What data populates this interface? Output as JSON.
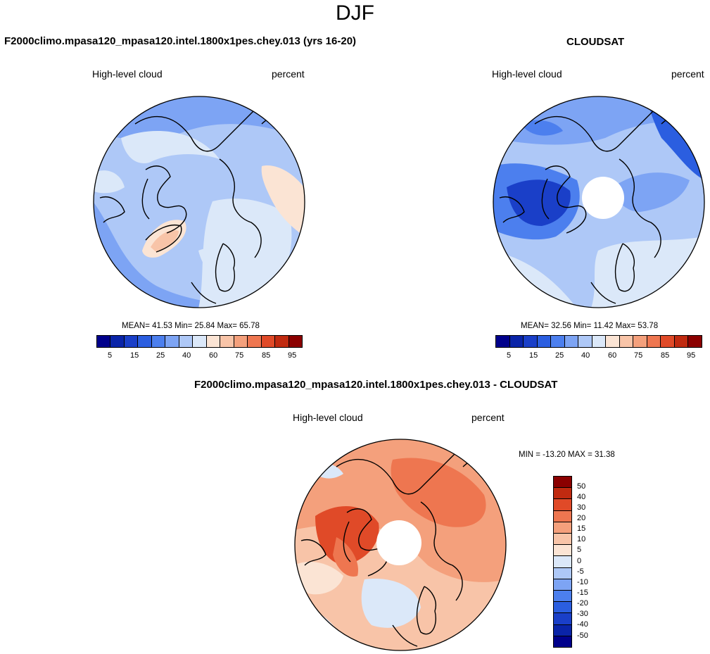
{
  "page": {
    "title": "DJF",
    "left_title": "F2000climo.mpasa120_mpasa120.intel.1800x1pes.chey.013 (yrs 16-20)",
    "right_title": "CLOUDSAT",
    "diff_title": "F2000climo.mpasa120_mpasa120.intel.1800x1pes.chey.013 - CLOUDSAT"
  },
  "panels": {
    "left": {
      "variable": "High-level cloud",
      "units": "percent",
      "stats": "MEAN=  41.53  Min=  25.84  Max=  65.78",
      "mean": 41.53,
      "min": 25.84,
      "max": 65.78
    },
    "right": {
      "variable": "High-level cloud",
      "units": "percent",
      "stats": "MEAN=  32.56  Min=  11.42  Max=  53.78",
      "mean": 32.56,
      "min": 11.42,
      "max": 53.78
    },
    "diff": {
      "variable": "High-level cloud",
      "units": "percent",
      "stats": "MIN = -13.20 MAX =  31.38",
      "min": -13.2,
      "max": 31.38
    }
  },
  "colorbar": {
    "colors": [
      "#00008b",
      "#0a24a8",
      "#1a3fc8",
      "#2b5ee0",
      "#4c7fee",
      "#7da4f4",
      "#aec8f7",
      "#dbe8f9",
      "#fbe4d4",
      "#f8c4a8",
      "#f4a07c",
      "#ee7650",
      "#e04a28",
      "#c02a10",
      "#8b0000"
    ],
    "tick_labels": [
      "5",
      "15",
      "25",
      "40",
      "60",
      "75",
      "85",
      "95"
    ]
  },
  "diff_colorbar": {
    "colors": [
      "#8b0000",
      "#c02a10",
      "#e04a28",
      "#ee7650",
      "#f4a07c",
      "#f8c4a8",
      "#fbe4d4",
      "#dbe8f9",
      "#aec8f7",
      "#7da4f4",
      "#4c7fee",
      "#2b5ee0",
      "#1a3fc8",
      "#0a24a8",
      "#00008b"
    ],
    "tick_labels": [
      "50",
      "40",
      "30",
      "20",
      "15",
      "10",
      "5",
      "0",
      "-5",
      "-10",
      "-15",
      "-20",
      "-30",
      "-40",
      "-50"
    ]
  }
}
